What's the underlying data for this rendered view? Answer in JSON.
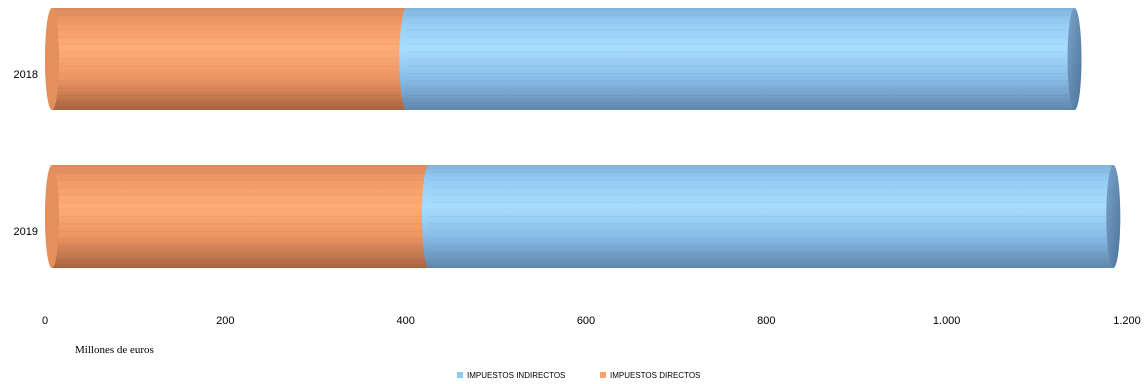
{
  "chart_data": {
    "type": "bar",
    "orientation": "horizontal",
    "stacked": true,
    "style": "3d-cylinder",
    "categories": [
      "2018",
      "2019"
    ],
    "series": [
      {
        "name": "IMPUESTOS DIRECTOS",
        "values": [
          393,
          418
        ],
        "color": "#F4A16D"
      },
      {
        "name": "IMPUESTOS INDIRECTOS",
        "values": [
          741,
          759
        ],
        "color": "#8EC9F2"
      }
    ],
    "xlabel": "Millones de euros",
    "xlim": [
      0,
      1200
    ],
    "x_ticks": [
      0,
      200,
      400,
      600,
      800,
      1000,
      1200
    ],
    "x_tick_labels": [
      "0",
      "200",
      "400",
      "600",
      "800",
      "1.000",
      "1.200"
    ],
    "grid": false,
    "legend": {
      "position": "bottom",
      "order": [
        "IMPUESTOS INDIRECTOS",
        "IMPUESTOS DIRECTOS"
      ]
    }
  }
}
